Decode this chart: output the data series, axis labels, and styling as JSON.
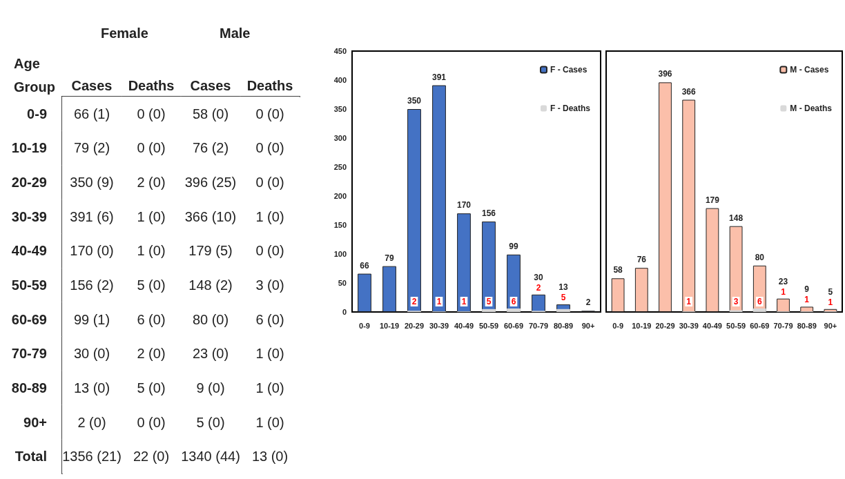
{
  "chart_data": [
    {
      "type": "other",
      "ylabel": "Age Group",
      "annotations": [
        "Female",
        "Male"
      ],
      "categories": [
        "Cases",
        "Deaths",
        "Cases",
        "Deaths"
      ],
      "y_categories": [
        "0-9",
        "10-19",
        "20-29",
        "30-39",
        "40-49",
        "50-59",
        "60-69",
        "70-79",
        "80-89",
        "90+",
        "Total"
      ],
      "cell_labels": [
        [
          "66 (1)",
          "0 (0)",
          "58 (0)",
          "0 (0)"
        ],
        [
          "79 (2)",
          "0 (0)",
          "76 (2)",
          "0 (0)"
        ],
        [
          "350 (9)",
          "2 (0)",
          "396 (25)",
          "0 (0)"
        ],
        [
          "391 (6)",
          "1 (0)",
          "366 (10)",
          "1 (0)"
        ],
        [
          "170 (0)",
          "1 (0)",
          "179 (5)",
          "0 (0)"
        ],
        [
          "156 (2)",
          "5 (0)",
          "148 (2)",
          "3 (0)"
        ],
        [
          "99 (1)",
          "6 (0)",
          "80 (0)",
          "6 (0)"
        ],
        [
          "30 (0)",
          "2 (0)",
          "23 (0)",
          "1 (0)"
        ],
        [
          "13 (0)",
          "5 (0)",
          "9 (0)",
          "1 (0)"
        ],
        [
          "2 (0)",
          "0 (0)",
          "5 (0)",
          "1 (0)"
        ],
        [
          "1356 (21)",
          "22 (0)",
          "1340 (44)",
          "13 (0)"
        ]
      ]
    },
    {
      "type": "bar",
      "categories": [
        "0-9",
        "10-19",
        "20-29",
        "30-39",
        "40-49",
        "50-59",
        "60-69",
        "70-79",
        "80-89",
        "90+"
      ],
      "ylim": [
        0,
        450
      ],
      "yticks": [
        0,
        50,
        100,
        150,
        200,
        250,
        300,
        350,
        400,
        450
      ],
      "grid": false,
      "legend": "top right",
      "series": [
        {
          "name": "F - Cases",
          "color": "#4472c4",
          "values": [
            66,
            79,
            350,
            391,
            170,
            156,
            99,
            30,
            13,
            2
          ],
          "value_labels": [
            "66",
            "79",
            "350",
            "391",
            "170",
            "156",
            "99",
            "30",
            "13",
            "2"
          ]
        },
        {
          "name": "F - Deaths",
          "color": "#d9d9d9",
          "values": [
            0,
            0,
            2,
            1,
            1,
            5,
            6,
            2,
            5,
            0
          ],
          "value_labels": [
            null,
            null,
            "2",
            "1",
            "1",
            "5",
            "6",
            "2",
            "5",
            null
          ]
        }
      ]
    },
    {
      "type": "bar",
      "categories": [
        "0-9",
        "10-19",
        "20-29",
        "30-39",
        "40-49",
        "50-59",
        "60-69",
        "70-79",
        "80-89",
        "90+"
      ],
      "ylim": [
        0,
        450
      ],
      "yticks": [
        0,
        50,
        100,
        150,
        200,
        250,
        300,
        350,
        400,
        450
      ],
      "grid": false,
      "legend": "top right",
      "tick_labels": "x",
      "series": [
        {
          "name": "M - Cases",
          "color": "#fbbfaa",
          "values": [
            58,
            76,
            396,
            366,
            179,
            148,
            80,
            23,
            9,
            5
          ],
          "value_labels": [
            "58",
            "76",
            "396",
            "366",
            "179",
            "148",
            "80",
            "23",
            "9",
            "5"
          ]
        },
        {
          "name": "M - Deaths",
          "color": "#d9d9d9",
          "values": [
            0,
            0,
            0,
            1,
            0,
            3,
            6,
            1,
            1,
            1
          ],
          "value_labels": [
            null,
            null,
            null,
            "1",
            null,
            "3",
            "6",
            "1",
            "1",
            "1"
          ]
        }
      ]
    }
  ]
}
